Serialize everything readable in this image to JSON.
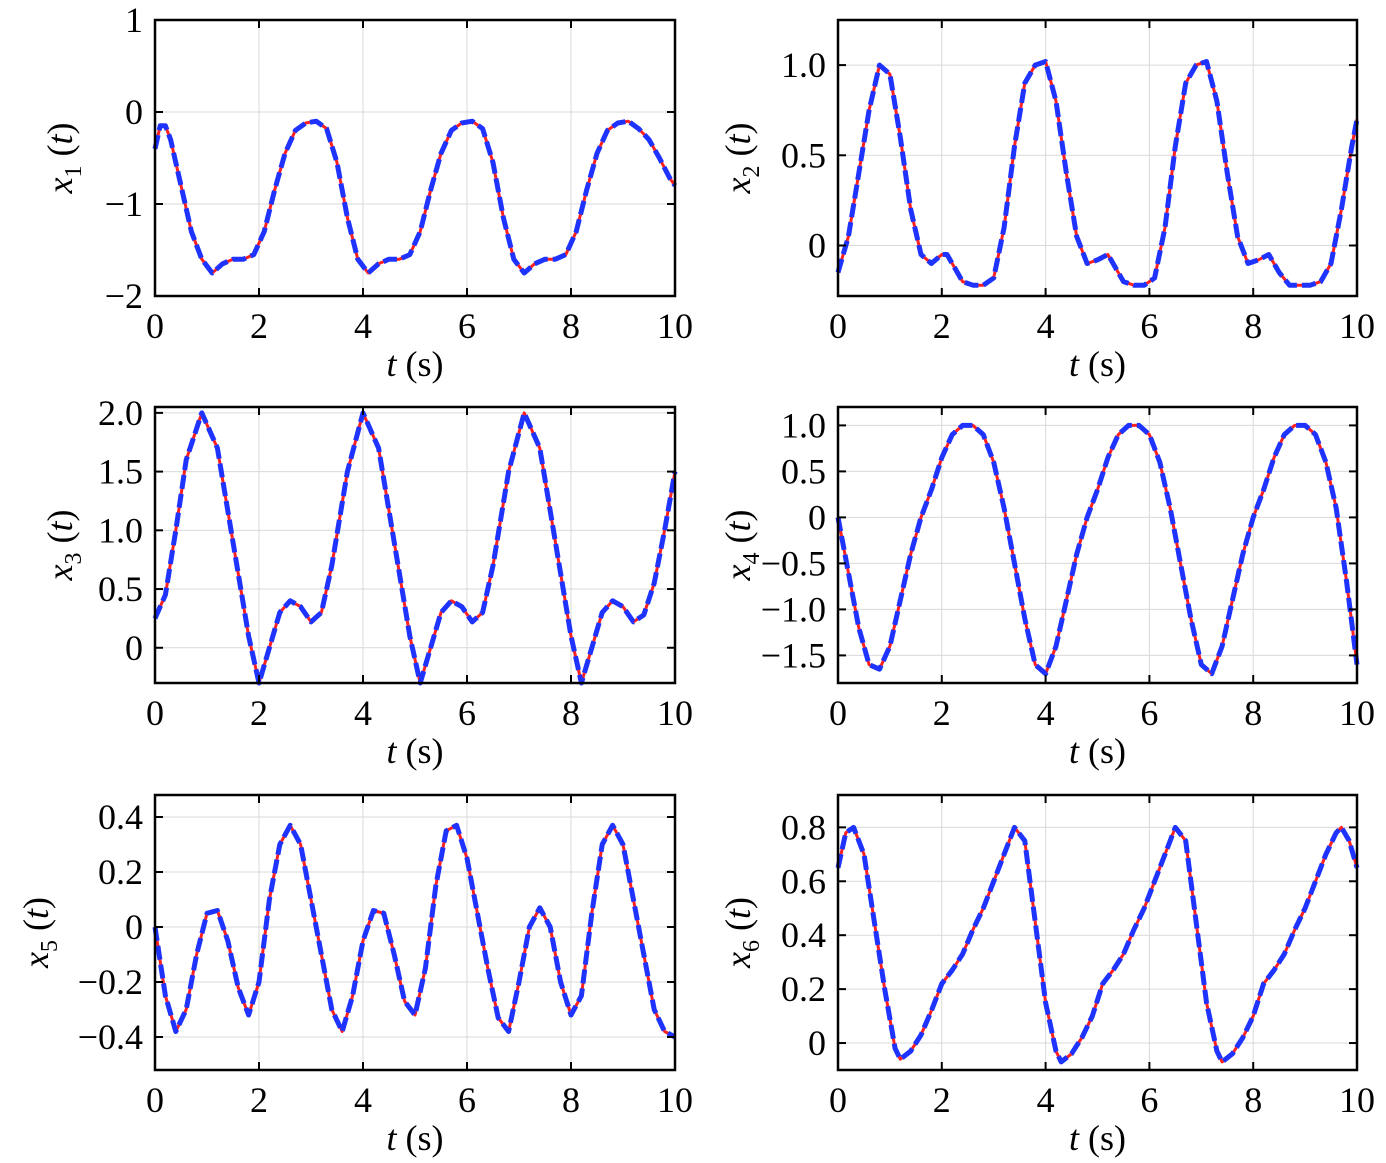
{
  "colors": {
    "reference": "#ff2020",
    "estimate": "#1f33ff",
    "grid": "#d9d9d9"
  },
  "chart_data": [
    {
      "type": "line",
      "ylabel": {
        "var": "x",
        "sub": "1",
        "arg": "t"
      },
      "xlabel": {
        "var": "t",
        "unit": "(s)"
      },
      "xlim": [
        0,
        10
      ],
      "ylim": [
        -2,
        1
      ],
      "xticks": [
        0,
        2,
        4,
        6,
        8,
        10
      ],
      "xtick_labels": [
        "0",
        "2",
        "4",
        "6",
        "8",
        "10"
      ],
      "yticks": [
        -2,
        -1,
        0,
        1
      ],
      "ytick_labels": [
        "−2",
        "−1",
        "0",
        "1"
      ],
      "grid": true,
      "x": [
        0,
        0.1,
        0.2,
        0.3,
        0.5,
        0.7,
        0.9,
        1.1,
        1.3,
        1.5,
        1.7,
        1.9,
        2.1,
        2.3,
        2.5,
        2.7,
        2.9,
        3.1,
        3.3,
        3.5,
        3.7,
        3.9,
        4.1,
        4.3,
        4.5,
        4.7,
        4.9,
        5.1,
        5.3,
        5.5,
        5.7,
        5.9,
        6.1,
        6.3,
        6.5,
        6.7,
        6.9,
        7.1,
        7.3,
        7.5,
        7.7,
        7.9,
        8.1,
        8.3,
        8.5,
        8.7,
        8.9,
        9.1,
        9.3,
        9.5,
        9.7,
        9.9,
        10
      ],
      "series": [
        {
          "y": [
            -0.4,
            -0.15,
            -0.15,
            -0.3,
            -0.8,
            -1.3,
            -1.6,
            -1.75,
            -1.65,
            -1.6,
            -1.6,
            -1.55,
            -1.3,
            -0.85,
            -0.45,
            -0.2,
            -0.12,
            -0.1,
            -0.18,
            -0.55,
            -1.15,
            -1.6,
            -1.75,
            -1.65,
            -1.6,
            -1.6,
            -1.55,
            -1.3,
            -0.85,
            -0.45,
            -0.2,
            -0.12,
            -0.1,
            -0.18,
            -0.55,
            -1.15,
            -1.6,
            -1.75,
            -1.65,
            -1.6,
            -1.6,
            -1.55,
            -1.3,
            -0.85,
            -0.45,
            -0.2,
            -0.12,
            -0.1,
            -0.18,
            -0.3,
            -0.5,
            -0.72,
            -0.8
          ]
        }
      ]
    },
    {
      "type": "line",
      "ylabel": {
        "var": "x",
        "sub": "2",
        "arg": "t"
      },
      "xlabel": {
        "var": "t",
        "unit": "(s)"
      },
      "xlim": [
        0,
        10
      ],
      "ylim": [
        -0.28,
        1.25
      ],
      "xticks": [
        0,
        2,
        4,
        6,
        8,
        10
      ],
      "xtick_labels": [
        "0",
        "2",
        "4",
        "6",
        "8",
        "10"
      ],
      "yticks": [
        0,
        0.5,
        1.0
      ],
      "ytick_labels": [
        "0",
        "0.5",
        "1.0"
      ],
      "grid": true,
      "x": [
        0,
        0.2,
        0.4,
        0.6,
        0.8,
        1.0,
        1.2,
        1.4,
        1.6,
        1.8,
        2.0,
        2.1,
        2.2,
        2.4,
        2.6,
        2.8,
        3.0,
        3.2,
        3.4,
        3.6,
        3.8,
        4.0,
        4.2,
        4.4,
        4.6,
        4.8,
        5.0,
        5.2,
        5.3,
        5.5,
        5.7,
        5.9,
        6.1,
        6.3,
        6.5,
        6.7,
        6.9,
        7.1,
        7.3,
        7.5,
        7.7,
        7.9,
        8.1,
        8.3,
        8.4,
        8.5,
        8.7,
        8.9,
        9.1,
        9.3,
        9.5,
        9.7,
        9.9,
        10
      ],
      "series": [
        {
          "y": [
            -0.15,
            0.05,
            0.4,
            0.75,
            1.0,
            0.95,
            0.6,
            0.2,
            -0.05,
            -0.1,
            -0.05,
            -0.05,
            -0.1,
            -0.2,
            -0.22,
            -0.22,
            -0.18,
            0.1,
            0.55,
            0.9,
            1.0,
            1.02,
            0.8,
            0.4,
            0.05,
            -0.1,
            -0.08,
            -0.05,
            -0.1,
            -0.2,
            -0.22,
            -0.22,
            -0.18,
            0.1,
            0.55,
            0.9,
            1.0,
            1.02,
            0.8,
            0.4,
            0.05,
            -0.1,
            -0.08,
            -0.05,
            -0.1,
            -0.15,
            -0.22,
            -0.22,
            -0.22,
            -0.2,
            -0.1,
            0.2,
            0.55,
            0.7
          ]
        }
      ]
    },
    {
      "type": "line",
      "ylabel": {
        "var": "x",
        "sub": "3",
        "arg": "t"
      },
      "xlabel": {
        "var": "t",
        "unit": "(s)"
      },
      "xlim": [
        0,
        10
      ],
      "ylim": [
        -0.3,
        2.05
      ],
      "xticks": [
        0,
        2,
        4,
        6,
        8,
        10
      ],
      "xtick_labels": [
        "0",
        "2",
        "4",
        "6",
        "8",
        "10"
      ],
      "yticks": [
        0,
        0.5,
        1.0,
        1.5,
        2.0
      ],
      "ytick_labels": [
        "0",
        "0.5",
        "1.0",
        "1.5",
        "2.0"
      ],
      "grid": true,
      "x": [
        0,
        0.2,
        0.4,
        0.6,
        0.9,
        1.2,
        1.5,
        1.8,
        2.0,
        2.2,
        2.4,
        2.6,
        2.8,
        3.0,
        3.2,
        3.4,
        3.7,
        4.0,
        4.3,
        4.6,
        4.9,
        5.1,
        5.3,
        5.5,
        5.7,
        5.9,
        6.1,
        6.3,
        6.5,
        6.8,
        7.1,
        7.4,
        7.7,
        8.0,
        8.2,
        8.4,
        8.6,
        8.8,
        9.0,
        9.2,
        9.4,
        9.6,
        9.8,
        10
      ],
      "series": [
        {
          "y": [
            0.25,
            0.45,
            1.0,
            1.6,
            2.0,
            1.7,
            0.9,
            0.1,
            -0.3,
            0.0,
            0.3,
            0.4,
            0.35,
            0.22,
            0.3,
            0.7,
            1.5,
            2.0,
            1.7,
            0.9,
            0.1,
            -0.3,
            0.0,
            0.3,
            0.4,
            0.35,
            0.22,
            0.3,
            0.7,
            1.5,
            2.0,
            1.7,
            0.9,
            0.1,
            -0.3,
            0.0,
            0.3,
            0.4,
            0.35,
            0.22,
            0.28,
            0.55,
            1.0,
            1.5
          ]
        }
      ]
    },
    {
      "type": "line",
      "ylabel": {
        "var": "x",
        "sub": "4",
        "arg": "t"
      },
      "xlabel": {
        "var": "t",
        "unit": "(s)"
      },
      "xlim": [
        0,
        10
      ],
      "ylim": [
        -1.8,
        1.2
      ],
      "xticks": [
        0,
        2,
        4,
        6,
        8,
        10
      ],
      "xtick_labels": [
        "0",
        "2",
        "4",
        "6",
        "8",
        "10"
      ],
      "yticks": [
        -1.5,
        -1.0,
        -0.5,
        0,
        0.5,
        1.0
      ],
      "ytick_labels": [
        "−1.5",
        "−1.0",
        "−0.5",
        "0",
        "0.5",
        "1.0"
      ],
      "grid": true,
      "x": [
        0,
        0.2,
        0.4,
        0.6,
        0.8,
        1.0,
        1.2,
        1.4,
        1.6,
        1.8,
        2.0,
        2.2,
        2.4,
        2.6,
        2.8,
        3.0,
        3.2,
        3.4,
        3.6,
        3.8,
        4.0,
        4.2,
        4.4,
        4.6,
        4.8,
        5.0,
        5.2,
        5.4,
        5.6,
        5.8,
        6.0,
        6.2,
        6.4,
        6.6,
        6.8,
        7.0,
        7.2,
        7.4,
        7.6,
        7.8,
        8.0,
        8.2,
        8.4,
        8.6,
        8.8,
        9.0,
        9.2,
        9.4,
        9.6,
        9.8,
        10
      ],
      "series": [
        {
          "y": [
            0.0,
            -0.6,
            -1.2,
            -1.6,
            -1.65,
            -1.4,
            -0.9,
            -0.4,
            0.0,
            0.3,
            0.65,
            0.9,
            1.0,
            1.0,
            0.9,
            0.6,
            0.1,
            -0.5,
            -1.1,
            -1.6,
            -1.7,
            -1.4,
            -0.9,
            -0.4,
            0.0,
            0.3,
            0.65,
            0.9,
            1.0,
            1.0,
            0.9,
            0.6,
            0.1,
            -0.5,
            -1.1,
            -1.6,
            -1.7,
            -1.4,
            -0.9,
            -0.4,
            0.0,
            0.3,
            0.65,
            0.9,
            1.0,
            1.0,
            0.9,
            0.6,
            0.1,
            -0.7,
            -1.6
          ]
        }
      ]
    },
    {
      "type": "line",
      "ylabel": {
        "var": "x",
        "sub": "5",
        "arg": "t"
      },
      "xlabel": {
        "var": "t",
        "unit": "(s)"
      },
      "xlim": [
        0,
        10
      ],
      "ylim": [
        -0.52,
        0.48
      ],
      "xticks": [
        0,
        2,
        4,
        6,
        8,
        10
      ],
      "xtick_labels": [
        "0",
        "2",
        "4",
        "6",
        "8",
        "10"
      ],
      "yticks": [
        -0.4,
        -0.2,
        0,
        0.2,
        0.4
      ],
      "ytick_labels": [
        "−0.4",
        "−0.2",
        "0",
        "0.2",
        "0.4"
      ],
      "grid": true,
      "x": [
        0,
        0.2,
        0.4,
        0.6,
        0.8,
        1.0,
        1.2,
        1.4,
        1.6,
        1.8,
        2.0,
        2.2,
        2.4,
        2.6,
        2.8,
        3.0,
        3.2,
        3.4,
        3.6,
        3.8,
        4.0,
        4.2,
        4.4,
        4.6,
        4.8,
        5.0,
        5.2,
        5.4,
        5.6,
        5.8,
        6.0,
        6.2,
        6.4,
        6.6,
        6.8,
        7.0,
        7.2,
        7.4,
        7.6,
        7.8,
        8.0,
        8.2,
        8.4,
        8.6,
        8.8,
        9.0,
        9.2,
        9.4,
        9.6,
        9.8,
        10
      ],
      "series": [
        {
          "y": [
            0.0,
            -0.25,
            -0.38,
            -0.3,
            -0.1,
            0.05,
            0.06,
            -0.05,
            -0.22,
            -0.32,
            -0.2,
            0.1,
            0.3,
            0.37,
            0.3,
            0.1,
            -0.1,
            -0.3,
            -0.38,
            -0.25,
            -0.05,
            0.06,
            0.05,
            -0.1,
            -0.27,
            -0.32,
            -0.15,
            0.15,
            0.35,
            0.37,
            0.25,
            0.05,
            -0.15,
            -0.33,
            -0.38,
            -0.2,
            0.0,
            0.07,
            0.0,
            -0.2,
            -0.32,
            -0.25,
            0.05,
            0.3,
            0.37,
            0.3,
            0.1,
            -0.1,
            -0.3,
            -0.38,
            -0.4
          ]
        }
      ]
    },
    {
      "type": "line",
      "ylabel": {
        "var": "x",
        "sub": "6",
        "arg": "t"
      },
      "xlabel": {
        "var": "t",
        "unit": "(s)"
      },
      "xlim": [
        0,
        10
      ],
      "ylim": [
        -0.1,
        0.92
      ],
      "xticks": [
        0,
        2,
        4,
        6,
        8,
        10
      ],
      "xtick_labels": [
        "0",
        "2",
        "4",
        "6",
        "8",
        "10"
      ],
      "yticks": [
        0,
        0.2,
        0.4,
        0.6,
        0.8
      ],
      "ytick_labels": [
        "0",
        "0.2",
        "0.4",
        "0.6",
        "0.8"
      ],
      "grid": true,
      "x": [
        0,
        0.15,
        0.3,
        0.5,
        0.7,
        0.9,
        1.1,
        1.2,
        1.4,
        1.6,
        1.8,
        2.0,
        2.2,
        2.4,
        2.6,
        2.8,
        3.0,
        3.2,
        3.4,
        3.6,
        3.8,
        4.0,
        4.2,
        4.3,
        4.5,
        4.7,
        4.9,
        5.1,
        5.3,
        5.5,
        5.7,
        5.9,
        6.1,
        6.3,
        6.5,
        6.7,
        6.9,
        7.1,
        7.3,
        7.4,
        7.6,
        7.8,
        8.0,
        8.2,
        8.4,
        8.6,
        8.8,
        9.0,
        9.2,
        9.4,
        9.6,
        9.7,
        9.85,
        10
      ],
      "series": [
        {
          "y": [
            0.65,
            0.78,
            0.8,
            0.7,
            0.45,
            0.2,
            -0.02,
            -0.06,
            -0.03,
            0.03,
            0.12,
            0.22,
            0.27,
            0.33,
            0.42,
            0.5,
            0.6,
            0.7,
            0.8,
            0.75,
            0.45,
            0.15,
            -0.03,
            -0.07,
            -0.04,
            0.02,
            0.1,
            0.22,
            0.27,
            0.33,
            0.42,
            0.5,
            0.6,
            0.7,
            0.8,
            0.75,
            0.45,
            0.15,
            -0.03,
            -0.07,
            -0.04,
            0.02,
            0.1,
            0.22,
            0.27,
            0.33,
            0.42,
            0.5,
            0.6,
            0.7,
            0.78,
            0.8,
            0.75,
            0.65
          ]
        }
      ]
    }
  ]
}
